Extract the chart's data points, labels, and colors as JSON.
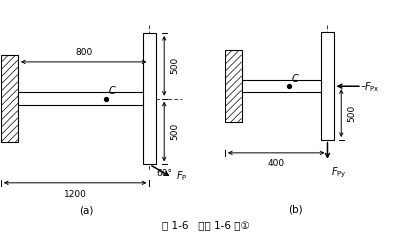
{
  "fig_width": 4.11,
  "fig_height": 2.33,
  "dpi": 100,
  "bg_color": "#ffffff",
  "caption": "图 1-6   例题 1-6 图①",
  "caption_fontsize": 7.5,
  "label_a": "(a)",
  "label_b": "(b)"
}
